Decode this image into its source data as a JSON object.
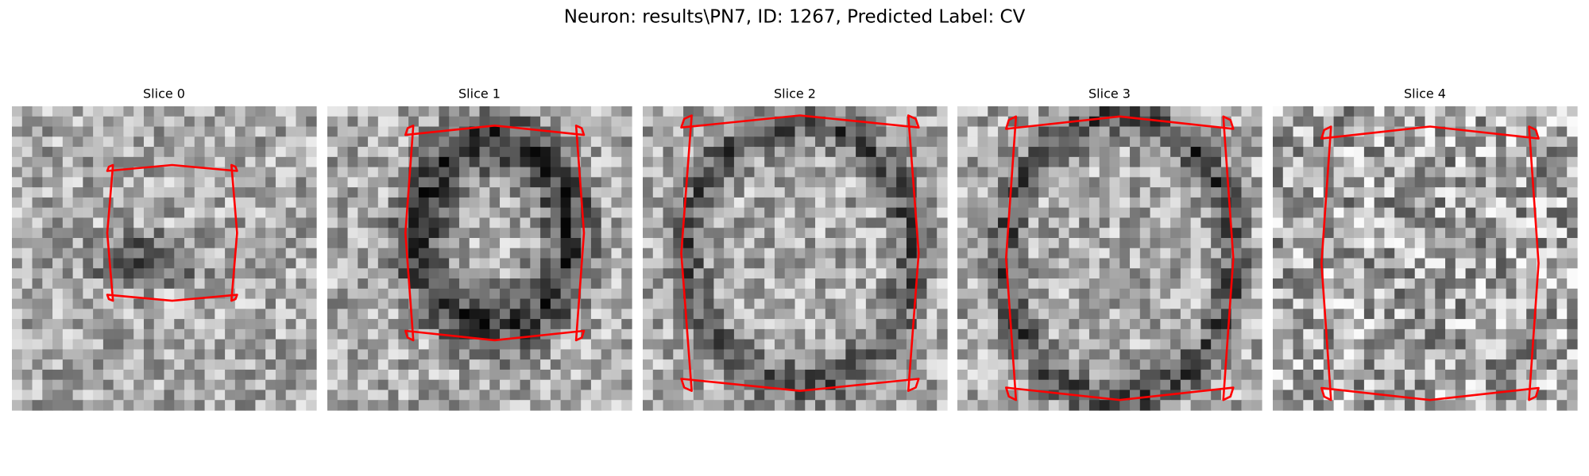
{
  "title": "Neuron: results\\PN7, ID: 1267, Predicted Label: CV",
  "panels": [
    {
      "title": "Slice 0"
    },
    {
      "title": "Slice 1"
    },
    {
      "title": "Slice 2"
    },
    {
      "title": "Slice 3"
    },
    {
      "title": "Slice 4"
    }
  ]
}
